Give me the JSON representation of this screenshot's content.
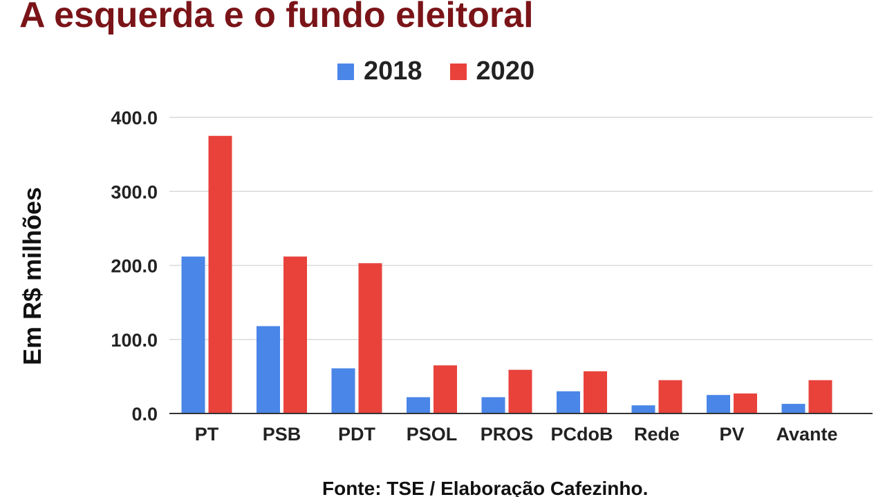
{
  "chart_data": {
    "type": "bar",
    "title": "A esquerda e o fundo eleitoral",
    "ylabel": "Em R$ milhões",
    "xlabel": "",
    "source": "Fonte: TSE / Elaboração Cafezinho.",
    "categories": [
      "PT",
      "PSB",
      "PDT",
      "PSOL",
      "PROS",
      "PCdoB",
      "Rede",
      "PV",
      "Avante"
    ],
    "series": [
      {
        "name": "2018",
        "color": "#4a86e8",
        "values": [
          212,
          118,
          61,
          22,
          22,
          30,
          11,
          25,
          13
        ]
      },
      {
        "name": "2020",
        "color": "#e8423b",
        "values": [
          375,
          212,
          203,
          65,
          59,
          57,
          45,
          27,
          45
        ]
      }
    ],
    "yticks": [
      "0.0",
      "100.0",
      "200.0",
      "300.0",
      "400.0"
    ],
    "ytick_values": [
      0,
      100,
      200,
      300,
      400
    ],
    "ylim": [
      0,
      400
    ],
    "grid": true,
    "legend_position": "top"
  }
}
